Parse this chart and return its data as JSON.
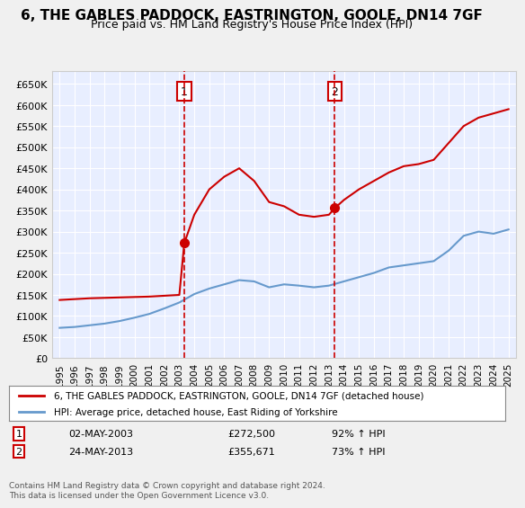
{
  "title": "6, THE GABLES PADDOCK, EASTRINGTON, GOOLE, DN14 7GF",
  "subtitle": "Price paid vs. HM Land Registry's House Price Index (HPI)",
  "ylabel": "",
  "ylim": [
    0,
    680000
  ],
  "yticks": [
    0,
    50000,
    100000,
    150000,
    200000,
    250000,
    300000,
    350000,
    400000,
    450000,
    500000,
    550000,
    600000,
    650000
  ],
  "ytick_labels": [
    "£0",
    "£50K",
    "£100K",
    "£150K",
    "£200K",
    "£250K",
    "£300K",
    "£350K",
    "£400K",
    "£450K",
    "£500K",
    "£550K",
    "£600K",
    "£650K"
  ],
  "xlim_start": 1994.5,
  "xlim_end": 2025.5,
  "background_color": "#f0f4ff",
  "plot_bg_color": "#e8eeff",
  "grid_color": "#ffffff",
  "red_color": "#cc0000",
  "blue_color": "#6699cc",
  "marker1_x": 2003.33,
  "marker1_y": 272500,
  "marker1_label": "1",
  "marker2_x": 2013.39,
  "marker2_y": 355671,
  "marker2_label": "2",
  "legend_line1": "6, THE GABLES PADDOCK, EASTRINGTON, GOOLE, DN14 7GF (detached house)",
  "legend_line2": "HPI: Average price, detached house, East Riding of Yorkshire",
  "table_row1": "1    02-MAY-2003    £272,500    92% ↑ HPI",
  "table_row2": "2    24-MAY-2013    £355,671    73% ↑ HPI",
  "footer": "Contains HM Land Registry data © Crown copyright and database right 2024.\nThis data is licensed under the Open Government Licence v3.0.",
  "hpi_years": [
    1995,
    1996,
    1997,
    1998,
    1999,
    2000,
    2001,
    2002,
    2003,
    2004,
    2005,
    2006,
    2007,
    2008,
    2009,
    2010,
    2011,
    2012,
    2013,
    2014,
    2015,
    2016,
    2017,
    2018,
    2019,
    2020,
    2021,
    2022,
    2023,
    2024,
    2025
  ],
  "hpi_values": [
    72000,
    74000,
    78000,
    82000,
    88000,
    96000,
    105000,
    118000,
    132000,
    152000,
    165000,
    175000,
    185000,
    182000,
    168000,
    175000,
    172000,
    168000,
    172000,
    182000,
    192000,
    202000,
    215000,
    220000,
    225000,
    230000,
    255000,
    290000,
    300000,
    295000,
    305000
  ],
  "red_years": [
    1995,
    1996,
    1997,
    1998,
    1999,
    2000,
    2001,
    2002,
    2003,
    2003.33,
    2004,
    2005,
    2006,
    2007,
    2008,
    2009,
    2010,
    2011,
    2012,
    2013,
    2013.39,
    2014,
    2015,
    2016,
    2017,
    2018,
    2019,
    2020,
    2021,
    2022,
    2023,
    2024,
    2025
  ],
  "red_values": [
    138000,
    140000,
    142000,
    143000,
    144000,
    145000,
    146000,
    148000,
    150000,
    272500,
    340000,
    400000,
    430000,
    450000,
    420000,
    370000,
    360000,
    340000,
    335000,
    340000,
    355671,
    375000,
    400000,
    420000,
    440000,
    455000,
    460000,
    470000,
    510000,
    550000,
    570000,
    580000,
    590000
  ]
}
